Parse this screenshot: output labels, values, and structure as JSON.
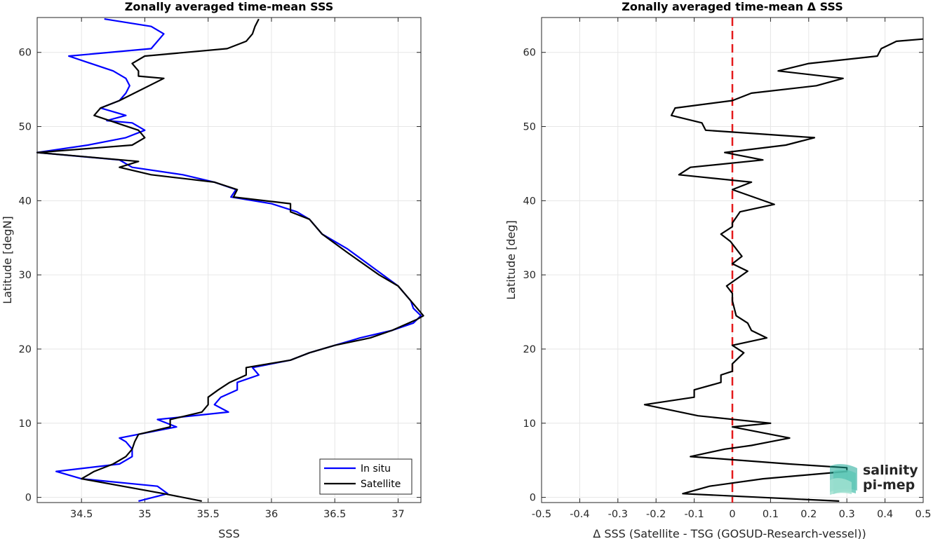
{
  "colors": {
    "in_situ": "#0000ff",
    "satellite": "#000000",
    "zero_line": "#e41a1c",
    "grid": "#e6e6e6",
    "logo_teal": "#1aa896",
    "logo_dark": "#3d6b68"
  },
  "logo": {
    "line1": "salinity",
    "line2": "pi-mep"
  },
  "chart_data": [
    {
      "type": "line",
      "title": "Zonally averaged time-mean SSS",
      "xlabel": "SSS",
      "ylabel": "Latitude [degN]",
      "xlim": [
        34.15,
        37.18
      ],
      "ylim": [
        -0.7,
        64.7
      ],
      "xticks": [
        34.5,
        35,
        35.5,
        36,
        36.5,
        37
      ],
      "xtick_labels": [
        "34.5",
        "35",
        "35.5",
        "36",
        "36.5",
        "37"
      ],
      "yticks": [
        0,
        10,
        20,
        30,
        40,
        50,
        60
      ],
      "ytick_labels": [
        "0",
        "10",
        "20",
        "30",
        "40",
        "50",
        "60"
      ],
      "grid": true,
      "legend_position": "bottom-right",
      "series": [
        {
          "name": "In situ",
          "points": [
            [
              34.95,
              -0.5
            ],
            [
              35.18,
              0.5
            ],
            [
              35.1,
              1.5
            ],
            [
              34.5,
              2.5
            ],
            [
              34.3,
              3.5
            ],
            [
              34.8,
              4.5
            ],
            [
              34.9,
              5.5
            ],
            [
              34.9,
              6.5
            ],
            [
              34.85,
              7.5
            ],
            [
              34.8,
              8
            ],
            [
              35.25,
              9.5
            ],
            [
              35.1,
              10.5
            ],
            [
              35.66,
              11.5
            ],
            [
              35.55,
              12.5
            ],
            [
              35.6,
              13.5
            ],
            [
              35.73,
              14.5
            ],
            [
              35.73,
              15.5
            ],
            [
              35.9,
              16.5
            ],
            [
              35.85,
              17.5
            ],
            [
              36.15,
              18.5
            ],
            [
              36.3,
              19.5
            ],
            [
              36.5,
              20.5
            ],
            [
              36.7,
              21.5
            ],
            [
              36.95,
              22.5
            ],
            [
              37.12,
              23.5
            ],
            [
              37.18,
              24.5
            ],
            [
              37.12,
              25.5
            ],
            [
              37.1,
              26.5
            ],
            [
              37.0,
              28.5
            ],
            [
              36.6,
              33.5
            ],
            [
              36.4,
              35.5
            ],
            [
              36.3,
              37.5
            ],
            [
              36.2,
              38.5
            ],
            [
              36.0,
              39.6
            ],
            [
              35.68,
              40.5
            ],
            [
              35.72,
              41.5
            ],
            [
              35.55,
              42.5
            ],
            [
              35.3,
              43.5
            ],
            [
              34.9,
              44.5
            ],
            [
              34.8,
              45.5
            ],
            [
              34.15,
              46.5
            ],
            [
              34.55,
              47.5
            ],
            [
              34.85,
              48.5
            ],
            [
              35.0,
              49.5
            ],
            [
              34.9,
              50.5
            ],
            [
              34.7,
              50.8
            ],
            [
              34.85,
              51.5
            ],
            [
              34.65,
              52.5
            ],
            [
              34.8,
              53.5
            ],
            [
              34.85,
              54.5
            ],
            [
              34.88,
              55.5
            ],
            [
              34.85,
              56.5
            ],
            [
              34.75,
              57.5
            ],
            [
              34.4,
              59.5
            ],
            [
              35.05,
              60.5
            ],
            [
              35.15,
              62.5
            ],
            [
              35.05,
              63.5
            ],
            [
              34.68,
              64.5
            ]
          ]
        },
        {
          "name": "Satellite",
          "points": [
            [
              35.45,
              -0.5
            ],
            [
              35.15,
              0.5
            ],
            [
              34.5,
              2.5
            ],
            [
              34.6,
              3.5
            ],
            [
              34.75,
              4.5
            ],
            [
              34.85,
              5.5
            ],
            [
              34.9,
              6.5
            ],
            [
              34.92,
              7.5
            ],
            [
              34.95,
              8.5
            ],
            [
              35.2,
              9.5
            ],
            [
              35.2,
              10.5
            ],
            [
              35.45,
              11.5
            ],
            [
              35.5,
              12.5
            ],
            [
              35.5,
              13.5
            ],
            [
              35.58,
              14.5
            ],
            [
              35.67,
              15.5
            ],
            [
              35.8,
              16.5
            ],
            [
              35.8,
              17.5
            ],
            [
              36.15,
              18.5
            ],
            [
              36.3,
              19.5
            ],
            [
              36.5,
              20.5
            ],
            [
              36.78,
              21.5
            ],
            [
              36.95,
              22.5
            ],
            [
              37.15,
              24
            ],
            [
              37.2,
              24.5
            ],
            [
              37.15,
              25.5
            ],
            [
              37.1,
              26.5
            ],
            [
              37.0,
              28.5
            ],
            [
              36.85,
              30
            ],
            [
              36.6,
              33
            ],
            [
              36.4,
              35.5
            ],
            [
              36.3,
              37.5
            ],
            [
              36.15,
              38.5
            ],
            [
              36.15,
              39.6
            ],
            [
              35.7,
              40.5
            ],
            [
              35.73,
              41.5
            ],
            [
              35.55,
              42.5
            ],
            [
              35.05,
              43.5
            ],
            [
              34.8,
              44.5
            ],
            [
              34.95,
              45.3
            ],
            [
              34.15,
              46.5
            ],
            [
              34.9,
              47.5
            ],
            [
              35.0,
              48.5
            ],
            [
              34.95,
              49.5
            ],
            [
              34.6,
              51.5
            ],
            [
              34.65,
              52.5
            ],
            [
              34.8,
              53.5
            ],
            [
              35.15,
              56.5
            ],
            [
              34.95,
              56.8
            ],
            [
              34.95,
              57.5
            ],
            [
              34.9,
              58.5
            ],
            [
              35.0,
              59.5
            ],
            [
              35.65,
              60.5
            ],
            [
              35.8,
              61.5
            ],
            [
              35.85,
              62.5
            ],
            [
              35.87,
              63.5
            ],
            [
              35.9,
              64.5
            ]
          ]
        }
      ]
    },
    {
      "type": "line",
      "title": "Zonally averaged time-mean Δ SSS",
      "xlabel": "Δ SSS (Satellite - TSG (GOSUD-Research-vessel))",
      "ylabel": "Latitude [deg]",
      "xlim": [
        -0.5,
        0.5
      ],
      "ylim": [
        -0.7,
        64.7
      ],
      "xticks": [
        -0.5,
        -0.4,
        -0.3,
        -0.2,
        -0.1,
        0,
        0.1,
        0.2,
        0.3,
        0.4,
        0.5
      ],
      "xtick_labels": [
        "-0.5",
        "-0.4",
        "-0.3",
        "-0.2",
        "-0.1",
        "0",
        "0.1",
        "0.2",
        "0.3",
        "0.4",
        "0.5"
      ],
      "yticks": [
        0,
        10,
        20,
        30,
        40,
        50,
        60
      ],
      "ytick_labels": [
        "0",
        "10",
        "20",
        "30",
        "40",
        "50",
        "60"
      ],
      "grid": true,
      "reference_line_x": 0,
      "series": [
        {
          "name": "",
          "points": [
            [
              0.28,
              -0.5
            ],
            [
              -0.13,
              0.5
            ],
            [
              -0.06,
              1.5
            ],
            [
              0.08,
              2.5
            ],
            [
              0.3,
              3.5
            ],
            [
              0.3,
              4.0
            ],
            [
              0.15,
              4.5
            ],
            [
              -0.11,
              5.5
            ],
            [
              -0.02,
              6.5
            ],
            [
              0.05,
              7.0
            ],
            [
              0.1,
              7.5
            ],
            [
              0.15,
              8.0
            ],
            [
              0.0,
              9.5
            ],
            [
              0.1,
              10.0
            ],
            [
              -0.09,
              11.0
            ],
            [
              -0.23,
              12.5
            ],
            [
              -0.1,
              13.5
            ],
            [
              -0.1,
              14.5
            ],
            [
              -0.03,
              15.5
            ],
            [
              -0.03,
              16.5
            ],
            [
              0.0,
              17.0
            ],
            [
              0.0,
              18.0
            ],
            [
              0.03,
              19.5
            ],
            [
              0.0,
              20.5
            ],
            [
              0.09,
              21.5
            ],
            [
              0.05,
              22.5
            ],
            [
              0.04,
              23.5
            ],
            [
              0.01,
              24.5
            ],
            [
              0.0,
              26.5
            ],
            [
              0.0,
              27.5
            ],
            [
              -0.015,
              28.5
            ],
            [
              0.04,
              30.5
            ],
            [
              0.0,
              31.5
            ],
            [
              0.025,
              32.5
            ],
            [
              -0.005,
              34.5
            ],
            [
              -0.03,
              35.5
            ],
            [
              0.0,
              36.5
            ],
            [
              0.0,
              37.0
            ],
            [
              0.02,
              38.5
            ],
            [
              0.11,
              39.5
            ],
            [
              0.0,
              41.5
            ],
            [
              0.05,
              42.5
            ],
            [
              -0.14,
              43.5
            ],
            [
              -0.11,
              44.5
            ],
            [
              0.08,
              45.5
            ],
            [
              -0.02,
              46.5
            ],
            [
              0.14,
              47.5
            ],
            [
              0.215,
              48.5
            ],
            [
              -0.07,
              49.5
            ],
            [
              -0.08,
              50.5
            ],
            [
              -0.16,
              51.5
            ],
            [
              -0.15,
              52.5
            ],
            [
              0.0,
              53.5
            ],
            [
              0.05,
              54.5
            ],
            [
              0.22,
              55.5
            ],
            [
              0.29,
              56.5
            ],
            [
              0.12,
              57.5
            ],
            [
              0.2,
              58.5
            ],
            [
              0.38,
              59.5
            ],
            [
              0.39,
              60.5
            ],
            [
              0.43,
              61.5
            ],
            [
              0.5,
              61.8
            ]
          ]
        }
      ]
    }
  ]
}
